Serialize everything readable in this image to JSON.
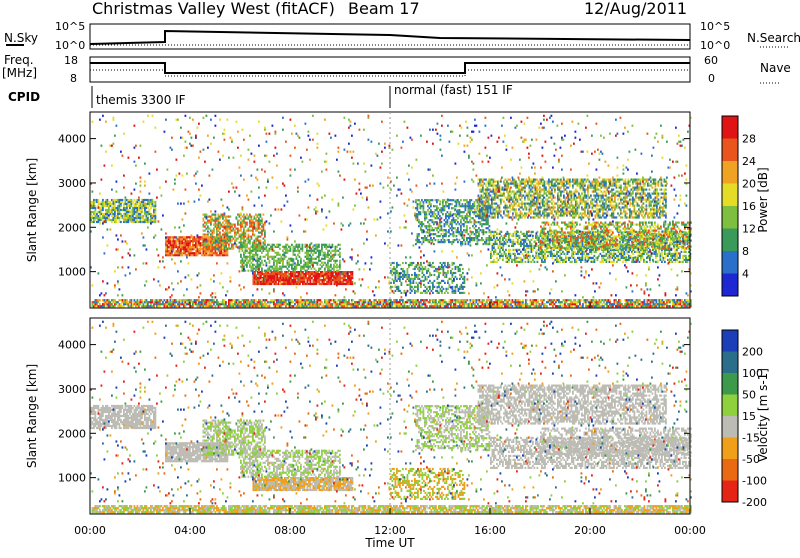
{
  "header": {
    "title": "Christmas Valley West (fitACF)",
    "beam": "Beam 17",
    "date": "12/Aug/2011"
  },
  "top_panels": {
    "nsky_label": "N.Sky",
    "nsearch_label": "N.Search",
    "freq_label": "Freq.",
    "freq_unit": "[MHz]",
    "nave_label": "Nave",
    "cpid_label": "CPID",
    "left_ticks_counts": [
      "10^5",
      "10^0"
    ],
    "right_ticks_counts": [
      "10^5",
      "10^0"
    ],
    "left_ticks_freq": [
      "18",
      "8"
    ],
    "right_ticks_nave": [
      "60",
      "0"
    ],
    "cpid_segments": [
      {
        "label": "themis 3300 IF"
      },
      {
        "label": "normal (fast) 151 IF"
      }
    ]
  },
  "chart_data": [
    {
      "type": "heatmap",
      "name": "power",
      "ylabel": "Slant Range [km]",
      "ylim": [
        180,
        4600
      ],
      "yticks": [
        "1000",
        "2000",
        "3000",
        "4000"
      ],
      "colorbar": {
        "label": "Power [dB]",
        "ticks": [
          "4",
          "8",
          "12",
          "16",
          "20",
          "24",
          "28"
        ],
        "colors": [
          "#1e28d2",
          "#2a6fc9",
          "#3a9a5a",
          "#7fbf3f",
          "#e5dc26",
          "#f0a323",
          "#e9551d",
          "#e01414"
        ]
      }
    },
    {
      "type": "heatmap",
      "name": "velocity",
      "ylabel": "Slant Range [km]",
      "xlabel": "Time UT",
      "ylim": [
        180,
        4600
      ],
      "yticks": [
        "1000",
        "2000",
        "3000",
        "4000"
      ],
      "xticks": [
        "00:00",
        "04:00",
        "08:00",
        "12:00",
        "16:00",
        "20:00",
        "00:00"
      ],
      "colorbar": {
        "label": "Velocity [m s-1]",
        "ticks": [
          "200",
          "100",
          "50",
          "15",
          "-15",
          "-50",
          "-100",
          "-200"
        ],
        "colors": [
          "#1a3fb8",
          "#2b6e8a",
          "#3d9a4a",
          "#8ed03e",
          "#bcbcb4",
          "#f0a018",
          "#ea6a14",
          "#e52416"
        ]
      }
    }
  ]
}
